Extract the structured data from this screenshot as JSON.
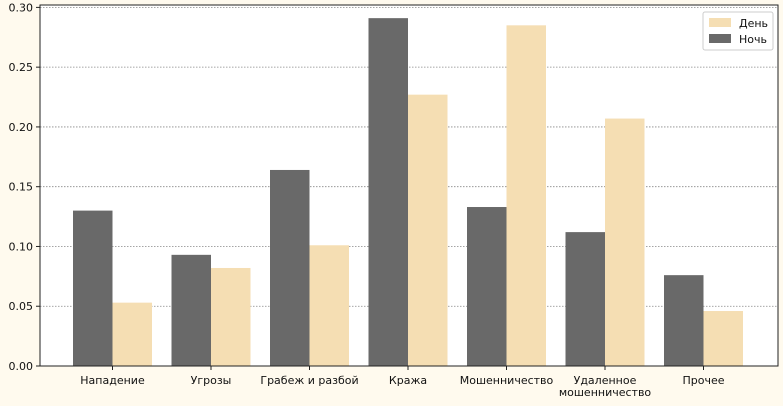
{
  "chart_data": {
    "type": "bar",
    "categories": [
      "Нападение",
      "Угрозы",
      "Грабеж и разбой",
      "Кража",
      "Мошенничество",
      "Удаленное\nмошенничество",
      "Прочее"
    ],
    "series": [
      {
        "name": "Ночь",
        "values": [
          0.13,
          0.093,
          0.164,
          0.291,
          0.133,
          0.112,
          0.076
        ],
        "color": "#696969"
      },
      {
        "name": "День",
        "values": [
          0.053,
          0.082,
          0.101,
          0.227,
          0.285,
          0.207,
          0.046
        ],
        "color": "#f5deb3"
      }
    ],
    "legend_order": [
      "День",
      "Ночь"
    ],
    "yticks": [
      "0.00",
      "0.05",
      "0.10",
      "0.15",
      "0.20",
      "0.25",
      "0.30"
    ],
    "ylim": [
      0,
      0.302
    ],
    "grid": "y-dotted",
    "legend_position": "top-right",
    "title": "",
    "xlabel": "",
    "ylabel": ""
  }
}
